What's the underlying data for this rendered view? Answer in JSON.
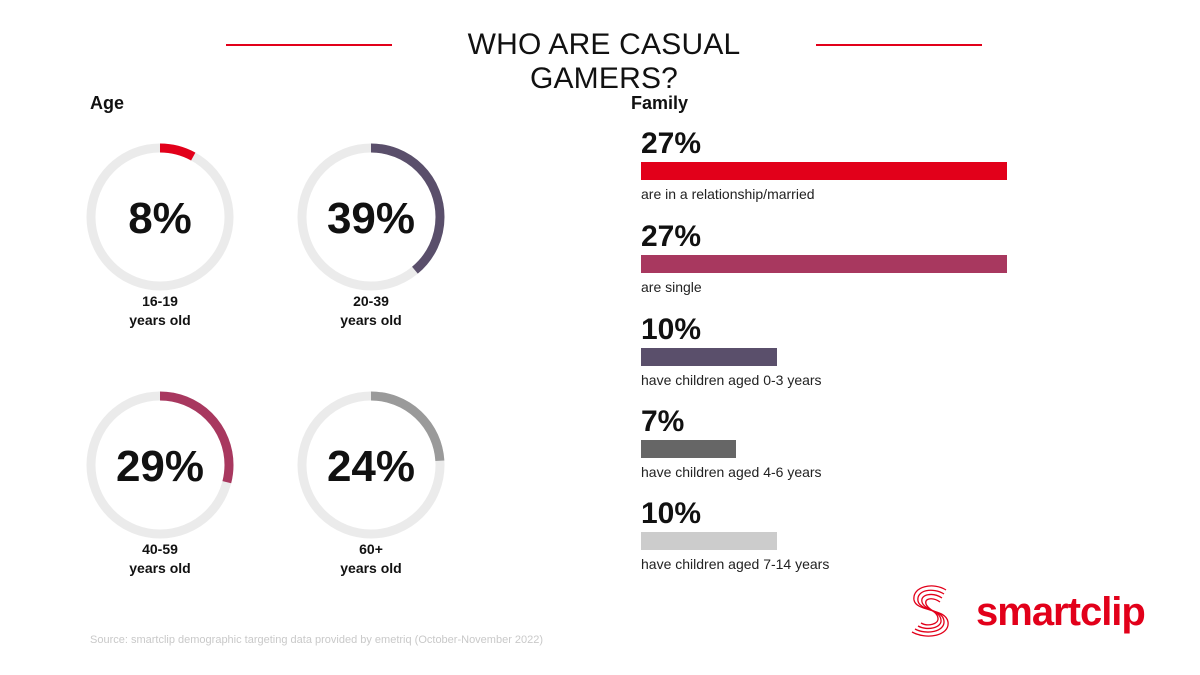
{
  "header": {
    "title": "WHO ARE CASUAL GAMERS?"
  },
  "sections": {
    "age_label": "Age",
    "family_label": "Family"
  },
  "colors": {
    "accent": "#e2001a",
    "track": "#ebebeb"
  },
  "chart_data": [
    {
      "type": "pie",
      "title": "Age",
      "categories": [
        "16-19 years old",
        "20-39 years old",
        "40-59 years old",
        "60+ years old"
      ],
      "values": [
        8,
        39,
        29,
        24
      ],
      "unit": "%",
      "items": [
        {
          "value": 8,
          "pct_label": "8%",
          "label_line1": "16-19",
          "label_line2": "years old",
          "color": "#e2001a"
        },
        {
          "value": 39,
          "pct_label": "39%",
          "label_line1": "20-39",
          "label_line2": "years old",
          "color": "#5a4f6b"
        },
        {
          "value": 29,
          "pct_label": "29%",
          "label_line1": "40-59",
          "label_line2": "years old",
          "color": "#a8385f"
        },
        {
          "value": 24,
          "pct_label": "24%",
          "label_line1": "60+",
          "label_line2": "years old",
          "color": "#9a9a9a"
        }
      ]
    },
    {
      "type": "bar",
      "title": "Family",
      "categories": [
        "are in a relationship/married",
        "are single",
        "have children aged 0-3 years",
        "have children aged 4-6 years",
        "have children aged 7-14 years"
      ],
      "values": [
        27,
        27,
        10,
        7,
        10
      ],
      "unit": "%",
      "xlim": [
        0,
        27
      ],
      "items": [
        {
          "value": 27,
          "pct_label": "27%",
          "label": "are in a relationship/married",
          "color": "#e2001a"
        },
        {
          "value": 27,
          "pct_label": "27%",
          "label": "are single",
          "color": "#a8385f"
        },
        {
          "value": 10,
          "pct_label": "10%",
          "label": "have children aged 0-3 years",
          "color": "#5a4f6b"
        },
        {
          "value": 7,
          "pct_label": "7%",
          "label": "have children aged 4-6 years",
          "color": "#666666"
        },
        {
          "value": 10,
          "pct_label": "10%",
          "label": "have children aged 7-14 years",
          "color": "#cccccc"
        }
      ]
    }
  ],
  "footer": {
    "source": "Source: smartclip demographic targeting data provided by emetriq (October-November 2022)",
    "logo_text": "smartclip"
  }
}
